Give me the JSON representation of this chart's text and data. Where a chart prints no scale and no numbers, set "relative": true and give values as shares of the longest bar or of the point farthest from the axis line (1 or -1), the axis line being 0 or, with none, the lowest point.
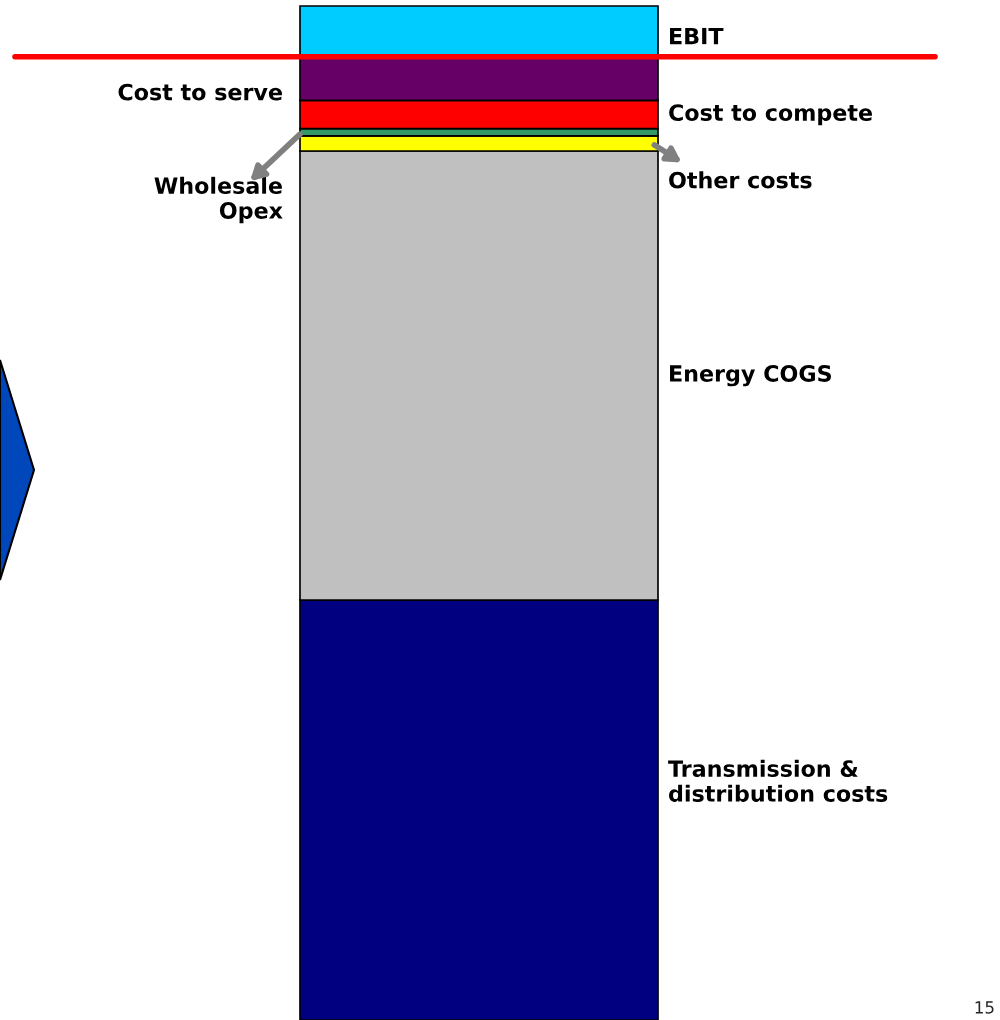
{
  "chart_data": {
    "type": "bar",
    "stacked": true,
    "relative": true,
    "categories": [
      null
    ],
    "series": [
      {
        "name": "Transmission &\ndistribution costs",
        "color": "#000080",
        "values": [
          0.414
        ]
      },
      {
        "name": "Energy COGS",
        "color": "#c0c0c0",
        "values": [
          0.443
        ]
      },
      {
        "name": "Other costs",
        "color": "#ffff00",
        "values": [
          0.015
        ]
      },
      {
        "name": "Wholesale\nOpex",
        "color": "#339966",
        "values": [
          0.007
        ]
      },
      {
        "name": "Cost to compete",
        "color": "#ff0000",
        "values": [
          0.028
        ]
      },
      {
        "name": "Cost to serve",
        "color": "#660066",
        "values": [
          0.043
        ]
      },
      {
        "name": "EBIT",
        "color": "#00ccff",
        "values": [
          0.05
        ]
      }
    ],
    "ref_lines": [
      {
        "axis": "y",
        "value": 0.95,
        "color": "#ff0000"
      }
    ],
    "annotations": [
      "15"
    ]
  }
}
